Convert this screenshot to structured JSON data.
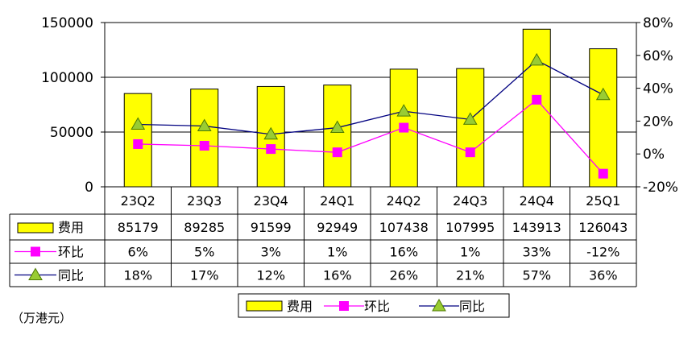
{
  "chart_data": {
    "type": "bar",
    "categories": [
      "23Q2",
      "23Q3",
      "23Q4",
      "24Q1",
      "24Q2",
      "24Q3",
      "24Q4",
      "25Q1"
    ],
    "ylim_left": [
      0,
      150000
    ],
    "yticks_left": [
      "150000",
      "100000",
      "50000",
      "0"
    ],
    "ylim_right": [
      -20,
      80
    ],
    "yticks_right": [
      "80%",
      "60%",
      "40%",
      "20%",
      "0%",
      "-20%"
    ],
    "grid": true,
    "legend_position": "bottom",
    "series": [
      {
        "name": "费用",
        "type": "bar",
        "color": "#FFFF00",
        "values": [
          85179,
          89285,
          91599,
          92949,
          107438,
          107995,
          143913,
          126043
        ],
        "labels": [
          "85179",
          "89285",
          "91599",
          "92949",
          "107438",
          "107995",
          "143913",
          "126043"
        ]
      },
      {
        "name": "环比",
        "type": "line",
        "axis": "right",
        "color": "#FF00FF",
        "marker": "square",
        "values": [
          6,
          5,
          3,
          1,
          16,
          1,
          33,
          -12
        ],
        "labels": [
          "6%",
          "5%",
          "3%",
          "1%",
          "16%",
          "1%",
          "33%",
          "-12%"
        ]
      },
      {
        "name": "同比",
        "type": "line",
        "axis": "right",
        "color": "#000080",
        "marker": "triangle",
        "marker_color": "#99CC33",
        "values": [
          18,
          17,
          12,
          16,
          26,
          21,
          57,
          36
        ],
        "labels": [
          "18%",
          "17%",
          "12%",
          "16%",
          "26%",
          "21%",
          "57%",
          "36%"
        ]
      }
    ]
  },
  "unit_note": "（万港元）"
}
